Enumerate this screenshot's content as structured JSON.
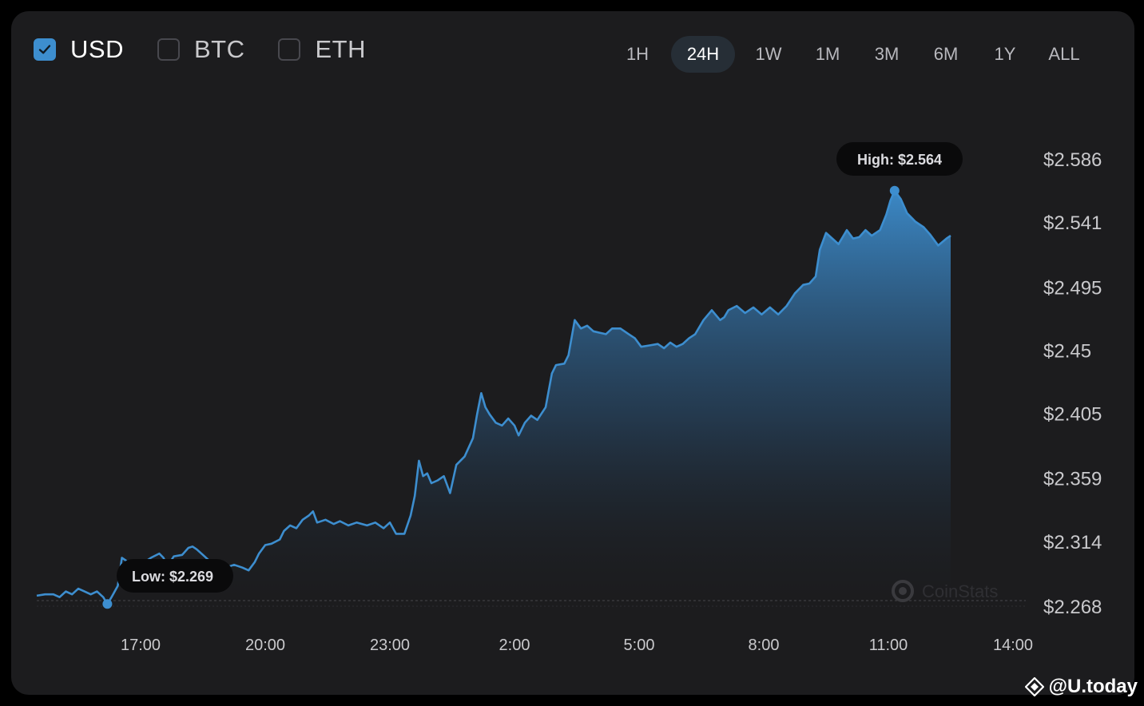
{
  "currencies": [
    {
      "label": "USD",
      "checked": true
    },
    {
      "label": "BTC",
      "checked": false
    },
    {
      "label": "ETH",
      "checked": false
    }
  ],
  "ranges": [
    "1H",
    "24H",
    "1W",
    "1M",
    "3M",
    "6M",
    "1Y",
    "ALL"
  ],
  "active_range": "24H",
  "colors": {
    "line": "#3d8ecf",
    "panel": "#1c1c1e",
    "text": "#c9c9cc"
  },
  "tooltips": {
    "high": "High: $2.564",
    "low": "Low: $2.269"
  },
  "chart_brand": "CoinStats",
  "watermark": "@U.today",
  "chart_data": {
    "type": "area",
    "title": "",
    "xlabel": "",
    "ylabel": "",
    "x_ticks": [
      "17:00",
      "20:00",
      "23:00",
      "2:00",
      "5:00",
      "8:00",
      "11:00",
      "14:00"
    ],
    "y_ticks": [
      "$2.586",
      "$2.541",
      "$2.495",
      "$2.45",
      "$2.405",
      "$2.359",
      "$2.314",
      "$2.268"
    ],
    "x_range_hours": [
      -2.5,
      21.5
    ],
    "ylim": [
      2.268,
      2.586
    ],
    "grid": false,
    "high": {
      "label": "High: $2.564",
      "value": 2.564
    },
    "low": {
      "label": "Low: $2.269",
      "value": 2.269
    },
    "series": [
      {
        "points": [
          [
            -2.5,
            2.276
          ],
          [
            -2.3,
            2.277
          ],
          [
            -2.1,
            2.277
          ],
          [
            -1.95,
            2.275
          ],
          [
            -1.8,
            2.279
          ],
          [
            -1.65,
            2.277
          ],
          [
            -1.5,
            2.281
          ],
          [
            -1.35,
            2.279
          ],
          [
            -1.2,
            2.277
          ],
          [
            -1.05,
            2.279
          ],
          [
            -0.9,
            2.275
          ],
          [
            -0.8,
            2.27
          ],
          [
            -0.7,
            2.275
          ],
          [
            -0.55,
            2.283
          ],
          [
            -0.45,
            2.303
          ],
          [
            -0.35,
            2.301
          ],
          [
            -0.25,
            2.289
          ],
          [
            -0.15,
            2.284
          ],
          [
            -0.05,
            2.293
          ],
          [
            0.1,
            2.3
          ],
          [
            0.25,
            2.303
          ],
          [
            0.45,
            2.306
          ],
          [
            0.55,
            2.303
          ],
          [
            0.65,
            2.297
          ],
          [
            0.8,
            2.304
          ],
          [
            1.0,
            2.305
          ],
          [
            1.15,
            2.31
          ],
          [
            1.25,
            2.311
          ],
          [
            1.35,
            2.309
          ],
          [
            1.5,
            2.305
          ],
          [
            1.65,
            2.301
          ],
          [
            1.8,
            2.295
          ],
          [
            1.9,
            2.298
          ],
          [
            2.05,
            2.296
          ],
          [
            2.25,
            2.298
          ],
          [
            2.45,
            2.296
          ],
          [
            2.6,
            2.294
          ],
          [
            2.75,
            2.3
          ],
          [
            2.85,
            2.306
          ],
          [
            3.0,
            2.312
          ],
          [
            3.15,
            2.313
          ],
          [
            3.35,
            2.316
          ],
          [
            3.45,
            2.322
          ],
          [
            3.6,
            2.326
          ],
          [
            3.75,
            2.324
          ],
          [
            3.9,
            2.33
          ],
          [
            4.05,
            2.333
          ],
          [
            4.15,
            2.336
          ],
          [
            4.25,
            2.328
          ],
          [
            4.45,
            2.33
          ],
          [
            4.65,
            2.327
          ],
          [
            4.8,
            2.329
          ],
          [
            5.0,
            2.326
          ],
          [
            5.2,
            2.328
          ],
          [
            5.45,
            2.326
          ],
          [
            5.65,
            2.328
          ],
          [
            5.85,
            2.324
          ],
          [
            6.0,
            2.328
          ],
          [
            6.15,
            2.32
          ],
          [
            6.35,
            2.32
          ],
          [
            6.5,
            2.333
          ],
          [
            6.6,
            2.347
          ],
          [
            6.7,
            2.372
          ],
          [
            6.8,
            2.361
          ],
          [
            6.9,
            2.363
          ],
          [
            7.0,
            2.356
          ],
          [
            7.15,
            2.358
          ],
          [
            7.3,
            2.361
          ],
          [
            7.45,
            2.349
          ],
          [
            7.6,
            2.369
          ],
          [
            7.8,
            2.375
          ],
          [
            8.0,
            2.388
          ],
          [
            8.1,
            2.405
          ],
          [
            8.2,
            2.42
          ],
          [
            8.3,
            2.41
          ],
          [
            8.4,
            2.405
          ],
          [
            8.55,
            2.399
          ],
          [
            8.7,
            2.397
          ],
          [
            8.85,
            2.402
          ],
          [
            9.0,
            2.397
          ],
          [
            9.1,
            2.39
          ],
          [
            9.25,
            2.399
          ],
          [
            9.4,
            2.404
          ],
          [
            9.55,
            2.401
          ],
          [
            9.75,
            2.41
          ],
          [
            9.9,
            2.434
          ],
          [
            10.0,
            2.44
          ],
          [
            10.2,
            2.441
          ],
          [
            10.3,
            2.447
          ],
          [
            10.45,
            2.472
          ],
          [
            10.6,
            2.466
          ],
          [
            10.75,
            2.468
          ],
          [
            10.9,
            2.464
          ],
          [
            11.05,
            2.463
          ],
          [
            11.2,
            2.462
          ],
          [
            11.35,
            2.466
          ],
          [
            11.55,
            2.466
          ],
          [
            11.75,
            2.462
          ],
          [
            11.9,
            2.459
          ],
          [
            12.05,
            2.453
          ],
          [
            12.25,
            2.454
          ],
          [
            12.45,
            2.455
          ],
          [
            12.6,
            2.452
          ],
          [
            12.75,
            2.456
          ],
          [
            12.9,
            2.453
          ],
          [
            13.05,
            2.455
          ],
          [
            13.2,
            2.459
          ],
          [
            13.35,
            2.462
          ],
          [
            13.55,
            2.472
          ],
          [
            13.75,
            2.479
          ],
          [
            13.95,
            2.472
          ],
          [
            14.05,
            2.474
          ],
          [
            14.15,
            2.479
          ],
          [
            14.35,
            2.482
          ],
          [
            14.55,
            2.477
          ],
          [
            14.75,
            2.481
          ],
          [
            14.95,
            2.476
          ],
          [
            15.15,
            2.481
          ],
          [
            15.35,
            2.476
          ],
          [
            15.55,
            2.482
          ],
          [
            15.75,
            2.491
          ],
          [
            15.95,
            2.497
          ],
          [
            16.1,
            2.498
          ],
          [
            16.25,
            2.503
          ],
          [
            16.35,
            2.522
          ],
          [
            16.5,
            2.534
          ],
          [
            16.65,
            2.53
          ],
          [
            16.8,
            2.526
          ],
          [
            17.0,
            2.536
          ],
          [
            17.15,
            2.53
          ],
          [
            17.3,
            2.531
          ],
          [
            17.45,
            2.536
          ],
          [
            17.6,
            2.532
          ],
          [
            17.8,
            2.536
          ],
          [
            17.95,
            2.547
          ],
          [
            18.05,
            2.557
          ],
          [
            18.15,
            2.564
          ],
          [
            18.3,
            2.558
          ],
          [
            18.45,
            2.548
          ],
          [
            18.65,
            2.542
          ],
          [
            18.85,
            2.538
          ],
          [
            19.0,
            2.533
          ],
          [
            19.2,
            2.525
          ],
          [
            19.4,
            2.53
          ],
          [
            19.5,
            2.532
          ]
        ]
      }
    ]
  }
}
